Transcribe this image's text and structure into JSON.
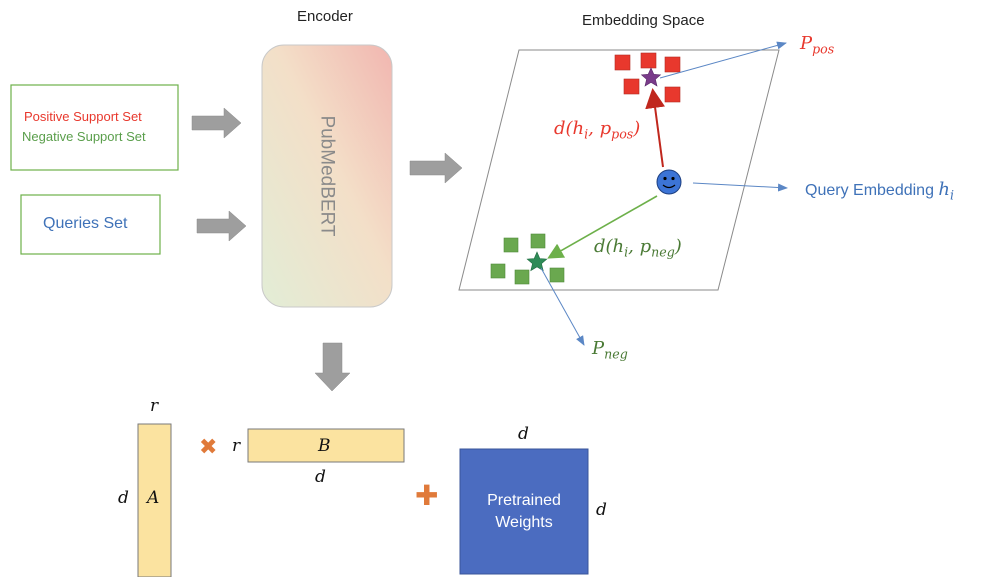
{
  "titles": {
    "encoder": "Encoder",
    "embedding_space": "Embedding Space"
  },
  "inputs": {
    "positive_support": "Positive Support Set",
    "negative_support": "Negative Support Set",
    "queries": "Queries Set"
  },
  "encoder_model": "PubMedBERT",
  "embedding": {
    "p_pos": {
      "main": "P",
      "sub": "pos"
    },
    "p_neg": {
      "main": "P",
      "sub": "neg"
    },
    "d_pos": {
      "pre": "d(h",
      "sub1": "i",
      "mid": ", p",
      "sub2": "pos",
      "post": ")"
    },
    "d_neg": {
      "pre": "d(h",
      "sub1": "i",
      "mid": ", p",
      "sub2": "neg",
      "post": ")"
    },
    "query_label": "Query Embedding",
    "query_var": {
      "main": "h",
      "sub": "i"
    }
  },
  "lora": {
    "matrix_a_label": "A",
    "matrix_a_rows": "d",
    "matrix_a_cols": "r",
    "matrix_b_label": "B",
    "matrix_b_rows": "r",
    "matrix_b_cols": "d",
    "weights_label_line1": "Pretrained",
    "weights_label_line2": "Weights",
    "weights_top": "d",
    "weights_side": "d",
    "times_symbol": "✖",
    "plus_symbol": "✚"
  },
  "colors": {
    "positive": "#e8382d",
    "negative": "#5a9e4b",
    "query_blue": "#3f72b8",
    "arrow_gray": "#9e9e9e",
    "matrix_yellow": "#fbe3a0",
    "weights_blue": "#4b6cc0",
    "orange": "#e07a3a"
  }
}
